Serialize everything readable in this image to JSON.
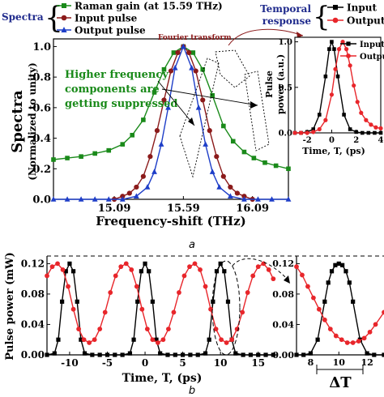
{
  "colors": {
    "raman": "#1a8a1a",
    "input": "#8b1a1a",
    "output": "#1e3ec8",
    "black": "#000000",
    "red": "#e8262b",
    "annotation_green": "#1a8a1a",
    "navy": "#1f2a8c",
    "darkred": "#8b1a1a"
  },
  "captions": {
    "a": "a",
    "b": "b"
  },
  "chart_data": [
    {
      "id": "a-main",
      "type": "line",
      "title": "",
      "xlabel": "Frequency-shift (THz)",
      "ylabel": "Spectra",
      "ylabel2": "(Normalized to unity)",
      "xlim": [
        14.65,
        16.35
      ],
      "ylim": [
        0.0,
        1.05
      ],
      "xticks": [
        15.09,
        15.59,
        16.09
      ],
      "xtick_labels": [
        "15.09",
        "15.59",
        "16.09"
      ],
      "yticks": [
        0.0,
        0.2,
        0.4,
        0.6,
        0.8,
        1.0
      ],
      "ytick_labels": [
        "0.0",
        "0.2",
        "0.4",
        "0.6",
        "0.8",
        "1.0"
      ],
      "legend_group": "Spectra",
      "series": [
        {
          "name": "Raman gain (at 15.59 THz)",
          "marker": "square",
          "color_key": "raman",
          "x": [
            14.65,
            14.75,
            14.85,
            14.95,
            15.05,
            15.15,
            15.22,
            15.3,
            15.38,
            15.45,
            15.52,
            15.59,
            15.66,
            15.73,
            15.8,
            15.88,
            15.95,
            16.03,
            16.1,
            16.18,
            16.26,
            16.35
          ],
          "y": [
            0.26,
            0.27,
            0.28,
            0.3,
            0.32,
            0.36,
            0.42,
            0.52,
            0.7,
            0.85,
            0.96,
            1.0,
            0.96,
            0.85,
            0.68,
            0.48,
            0.38,
            0.31,
            0.27,
            0.24,
            0.22,
            0.2
          ]
        },
        {
          "name": "Input pulse",
          "marker": "circle",
          "color_key": "input",
          "x": [
            15.09,
            15.15,
            15.2,
            15.25,
            15.3,
            15.35,
            15.4,
            15.45,
            15.5,
            15.55,
            15.59,
            15.63,
            15.68,
            15.73,
            15.78,
            15.83,
            15.88,
            15.93,
            15.98,
            16.03,
            16.09
          ],
          "y": [
            0.0,
            0.02,
            0.04,
            0.08,
            0.15,
            0.28,
            0.45,
            0.65,
            0.84,
            0.96,
            1.0,
            0.96,
            0.84,
            0.65,
            0.45,
            0.28,
            0.15,
            0.08,
            0.04,
            0.02,
            0.0
          ]
        },
        {
          "name": "Output pulse",
          "marker": "triangle",
          "color_key": "output",
          "x": [
            14.65,
            14.75,
            14.85,
            14.95,
            15.05,
            15.15,
            15.25,
            15.33,
            15.38,
            15.43,
            15.48,
            15.53,
            15.59,
            15.65,
            15.7,
            15.75,
            15.8,
            15.85,
            15.93,
            16.03,
            16.13,
            16.23,
            16.35
          ],
          "y": [
            0.0,
            0.0,
            0.0,
            0.0,
            0.0,
            0.0,
            0.02,
            0.08,
            0.18,
            0.36,
            0.6,
            0.86,
            1.0,
            0.86,
            0.6,
            0.36,
            0.18,
            0.08,
            0.02,
            0.0,
            0.0,
            0.0,
            0.0
          ]
        }
      ],
      "annotations": {
        "fourier": "Fourier transform",
        "suppressed": [
          "Higher frequency",
          "components are",
          "getting suppressed"
        ]
      }
    },
    {
      "id": "a-inset",
      "type": "line",
      "title": "",
      "xlabel": "Time, T, (ps)",
      "ylabel": "Pulse",
      "ylabel2": "power (a.u.)",
      "xlim": [
        -3.0,
        4.0
      ],
      "ylim": [
        0.0,
        1.05
      ],
      "xticks": [
        -2,
        0,
        2,
        4
      ],
      "xtick_labels": [
        "-2",
        "0",
        "2",
        "4"
      ],
      "yticks": [
        0.0,
        0.5,
        1.0
      ],
      "ytick_labels": [
        "0.0",
        "0.5",
        "1.0"
      ],
      "legend_group": "Temporal response",
      "series": [
        {
          "name": "Input",
          "marker": "square",
          "color_key": "black",
          "x": [
            -3.0,
            -2.5,
            -2.0,
            -1.5,
            -1.0,
            -0.5,
            -0.2,
            0.0,
            0.2,
            0.5,
            1.0,
            1.5,
            2.0,
            2.5,
            3.0,
            3.5,
            4.0
          ],
          "y": [
            0.0,
            0.0,
            0.01,
            0.04,
            0.2,
            0.62,
            0.92,
            1.0,
            0.92,
            0.62,
            0.2,
            0.04,
            0.01,
            0.0,
            0.0,
            0.0,
            0.0
          ]
        },
        {
          "name": "Output",
          "marker": "circle",
          "color_key": "red",
          "x": [
            -3.0,
            -2.5,
            -2.0,
            -1.5,
            -1.0,
            -0.5,
            0.0,
            0.3,
            0.6,
            0.9,
            1.2,
            1.5,
            1.8,
            2.1,
            2.4,
            2.8,
            3.2,
            3.6,
            4.0
          ],
          "y": [
            0.0,
            0.0,
            0.0,
            0.01,
            0.04,
            0.14,
            0.42,
            0.7,
            0.92,
            1.0,
            0.92,
            0.74,
            0.52,
            0.34,
            0.22,
            0.14,
            0.09,
            0.06,
            0.05
          ]
        }
      ]
    },
    {
      "id": "b-main",
      "type": "line",
      "title": "",
      "xlabel": "Time, T, (ps)",
      "ylabel": "Pulse power (mW)",
      "xlim": [
        -13.0,
        17.5
      ],
      "ylim": [
        0.0,
        0.13
      ],
      "xticks": [
        -10,
        -5,
        0,
        5,
        10,
        15
      ],
      "xtick_labels": [
        "-10",
        "-5",
        "0",
        "5",
        "10",
        "15"
      ],
      "yticks": [
        0.0,
        0.04,
        0.08,
        0.12
      ],
      "ytick_labels": [
        "0.00",
        "0.04",
        "0.08",
        "0.12"
      ],
      "series": [
        {
          "name": "",
          "marker": "square",
          "color_key": "black",
          "x": [
            -13,
            -12,
            -11.5,
            -11,
            -10.5,
            -10,
            -9.5,
            -9,
            -8.5,
            -8,
            -7,
            -6,
            -5,
            -4,
            -3,
            -2,
            -1.5,
            -1,
            -0.5,
            0,
            0.5,
            1,
            1.5,
            2,
            3,
            4,
            5,
            6,
            7,
            8,
            8.5,
            9,
            9.5,
            10,
            10.5,
            11,
            11.5,
            12,
            13,
            14,
            15,
            16,
            17
          ],
          "y": [
            0.0,
            0.002,
            0.02,
            0.07,
            0.11,
            0.12,
            0.11,
            0.07,
            0.02,
            0.002,
            0.0,
            0.0,
            0.0,
            0.0,
            0.0,
            0.002,
            0.02,
            0.07,
            0.11,
            0.12,
            0.11,
            0.07,
            0.02,
            0.002,
            0.0,
            0.0,
            0.0,
            0.0,
            0.0,
            0.002,
            0.02,
            0.07,
            0.11,
            0.12,
            0.11,
            0.07,
            0.02,
            0.002,
            0.0,
            0.0,
            0.0,
            0.0,
            0.0
          ]
        },
        {
          "name": "",
          "marker": "circle",
          "color_key": "red",
          "x": [
            -13,
            -12.3,
            -11.6,
            -10.9,
            -10.2,
            -9.5,
            -8.8,
            -8.1,
            -7.4,
            -6.7,
            -6.0,
            -5.3,
            -4.6,
            -3.9,
            -3.2,
            -2.5,
            -1.8,
            -1.1,
            -0.4,
            0.3,
            1.0,
            1.7,
            2.4,
            3.1,
            3.8,
            4.5,
            5.2,
            5.9,
            6.6,
            7.3,
            8.0,
            8.7,
            9.4,
            10.1,
            10.8,
            11.5,
            12.2,
            12.9,
            13.6,
            14.3,
            15.0,
            15.7,
            16.4,
            17.0
          ],
          "y": [
            0.104,
            0.116,
            0.12,
            0.112,
            0.09,
            0.06,
            0.034,
            0.02,
            0.016,
            0.02,
            0.034,
            0.056,
            0.082,
            0.104,
            0.116,
            0.12,
            0.112,
            0.09,
            0.06,
            0.034,
            0.02,
            0.016,
            0.02,
            0.034,
            0.056,
            0.082,
            0.104,
            0.116,
            0.12,
            0.112,
            0.09,
            0.06,
            0.034,
            0.02,
            0.016,
            0.02,
            0.034,
            0.056,
            0.082,
            0.104,
            0.116,
            0.12,
            0.112,
            0.1
          ]
        }
      ]
    },
    {
      "id": "b-zoom",
      "type": "line",
      "title": "",
      "xlabel": "ΔT",
      "xlim": [
        7.0,
        13.2
      ],
      "ylim": [
        0.0,
        0.13
      ],
      "xticks": [
        8,
        10,
        12
      ],
      "xtick_labels": [
        "8",
        "10",
        "12"
      ],
      "yticks": [
        0.0,
        0.04,
        0.08,
        0.12
      ],
      "ytick_labels": [
        "0.00",
        "0.04",
        "0.08",
        "0.12"
      ],
      "series": [
        {
          "name": "",
          "marker": "square",
          "color_key": "black",
          "x": [
            7.0,
            7.5,
            8.0,
            8.5,
            9.0,
            9.25,
            9.5,
            9.75,
            10.0,
            10.25,
            10.5,
            10.75,
            11.0,
            11.5,
            12.0,
            12.5,
            13.2
          ],
          "y": [
            0.0,
            0.0,
            0.002,
            0.02,
            0.07,
            0.095,
            0.11,
            0.118,
            0.12,
            0.118,
            0.11,
            0.095,
            0.07,
            0.02,
            0.002,
            0.0,
            0.0
          ]
        },
        {
          "name": "",
          "marker": "circle",
          "color_key": "red",
          "x": [
            7.0,
            7.4,
            7.8,
            8.2,
            8.6,
            9.0,
            9.4,
            9.8,
            10.2,
            10.6,
            11.0,
            11.4,
            11.8,
            12.2,
            12.6,
            13.2
          ],
          "y": [
            0.116,
            0.105,
            0.09,
            0.075,
            0.06,
            0.046,
            0.034,
            0.025,
            0.02,
            0.016,
            0.016,
            0.018,
            0.022,
            0.03,
            0.04,
            0.056
          ]
        }
      ]
    }
  ]
}
